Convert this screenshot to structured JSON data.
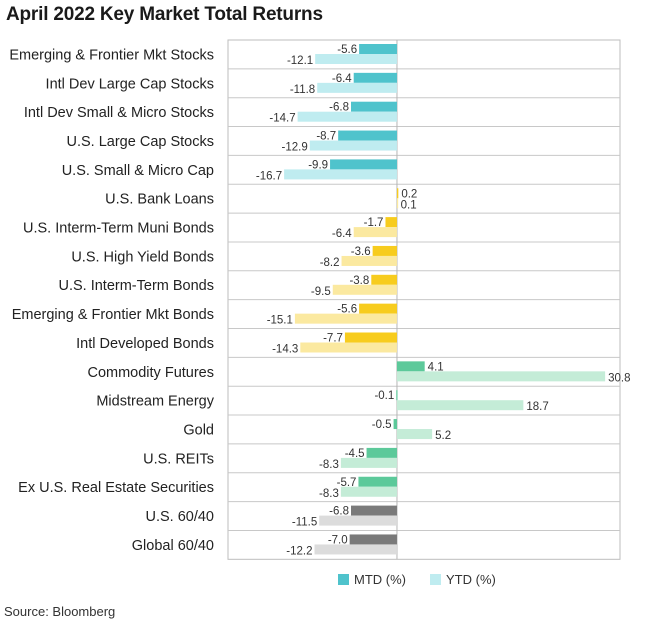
{
  "chart_data": {
    "type": "bar",
    "orientation": "horizontal",
    "title": "April 2022 Key Market Total Returns",
    "categories": [
      "Emerging & Frontier Mkt Stocks",
      "Intl Dev Large Cap Stocks",
      "Intl Dev Small & Micro Stocks",
      "U.S. Large Cap Stocks",
      "U.S. Small & Micro Cap",
      "U.S. Bank Loans",
      "U.S. Interm-Term Muni Bonds",
      "U.S. High Yield Bonds",
      "U.S. Interm-Term Bonds",
      "Emerging & Frontier Mkt Bonds",
      "Intl Developed Bonds",
      "Commodity Futures",
      "Midstream Energy",
      "Gold",
      "U.S. REITs",
      "Ex U.S. Real Estate Securities",
      "U.S. 60/40",
      "Global 60/40"
    ],
    "series": [
      {
        "name": "MTD (%)",
        "values": [
          -5.6,
          -6.4,
          -6.8,
          -8.7,
          -9.9,
          0.2,
          -1.7,
          -3.6,
          -3.8,
          -5.6,
          -7.7,
          4.1,
          -0.1,
          -0.5,
          -4.5,
          -5.7,
          -6.8,
          -7.0
        ]
      },
      {
        "name": "YTD (%)",
        "values": [
          -12.1,
          -11.8,
          -14.7,
          -12.9,
          -16.7,
          0.1,
          -6.4,
          -8.2,
          -9.5,
          -15.1,
          -14.3,
          30.8,
          18.7,
          5.2,
          -8.3,
          -8.3,
          -11.5,
          -12.2
        ]
      }
    ],
    "group_colors": [
      {
        "mtd": "#4fc3cc",
        "ytd": "#bfecf0"
      },
      {
        "mtd": "#4fc3cc",
        "ytd": "#bfecf0"
      },
      {
        "mtd": "#4fc3cc",
        "ytd": "#bfecf0"
      },
      {
        "mtd": "#4fc3cc",
        "ytd": "#bfecf0"
      },
      {
        "mtd": "#4fc3cc",
        "ytd": "#bfecf0"
      },
      {
        "mtd": "#f7cc1e",
        "ytd": "#fbe9a0"
      },
      {
        "mtd": "#f7cc1e",
        "ytd": "#fbe9a0"
      },
      {
        "mtd": "#f7cc1e",
        "ytd": "#fbe9a0"
      },
      {
        "mtd": "#f7cc1e",
        "ytd": "#fbe9a0"
      },
      {
        "mtd": "#f7cc1e",
        "ytd": "#fbe9a0"
      },
      {
        "mtd": "#f7cc1e",
        "ytd": "#fbe9a0"
      },
      {
        "mtd": "#5cc99a",
        "ytd": "#c4ecd7"
      },
      {
        "mtd": "#5cc99a",
        "ytd": "#c4ecd7"
      },
      {
        "mtd": "#5cc99a",
        "ytd": "#c4ecd7"
      },
      {
        "mtd": "#5cc99a",
        "ytd": "#c4ecd7"
      },
      {
        "mtd": "#5cc99a",
        "ytd": "#c4ecd7"
      },
      {
        "mtd": "#7a7a7a",
        "ytd": "#dcdcdc"
      },
      {
        "mtd": "#7a7a7a",
        "ytd": "#dcdcdc"
      }
    ],
    "xlim": [
      -25,
      33
    ],
    "grid": "horizontal-row-lines",
    "legend_position": "bottom",
    "legend_colors": [
      "#4fc3cc",
      "#bfecf0"
    ]
  },
  "source": "Source: Bloomberg"
}
